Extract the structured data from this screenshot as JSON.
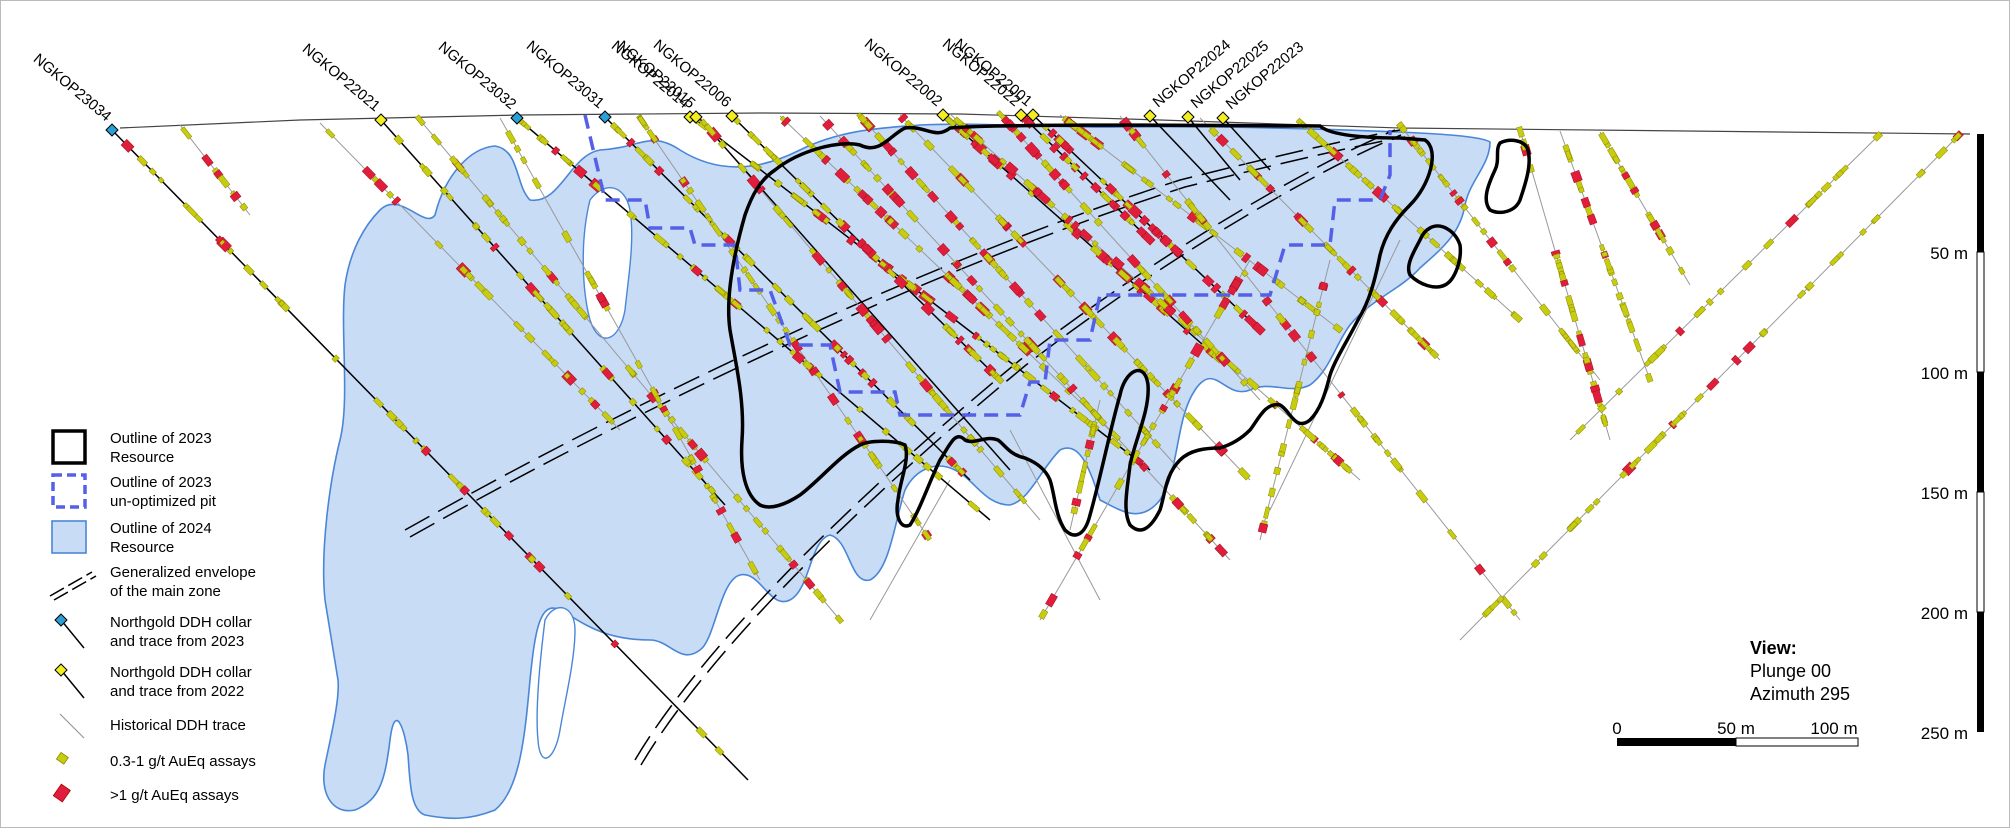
{
  "holes_2023": [
    "NGKOP23034",
    "NGKOP23032",
    "NGKOP23031"
  ],
  "holes_2022": [
    "NGKOP22021",
    "NGKOP22014",
    "NGKOP22015",
    "NGKOP22006",
    "NGKOP22002",
    "NGKOP22022",
    "NGKOP22001",
    "NGKOP22024",
    "NGKOP22025",
    "NGKOP22023"
  ],
  "legend": {
    "resource_2023": [
      "Outline of 2023",
      "Resource"
    ],
    "pit_2023": [
      "Outline of 2023",
      "un-optimized pit"
    ],
    "resource_2024": [
      "Outline of 2024",
      "Resource"
    ],
    "envelope": [
      "Generalized envelope",
      "of the main zone"
    ],
    "ddh_2023": [
      "Northgold DDH collar",
      "and trace from 2023"
    ],
    "ddh_2022": [
      "Northgold DDH collar",
      "and trace from 2022"
    ],
    "historical": "Historical DDH trace",
    "assay_low": "0.3-1 g/t AuEq assays",
    "assay_high": ">1 g/t AuEq assays"
  },
  "depth_scale": {
    "unit": "m",
    "ticks": [
      "50 m",
      "100 m",
      "150 m",
      "200 m",
      "250 m"
    ]
  },
  "view": {
    "title": "View:",
    "plunge": "Plunge 00",
    "azimuth": "Azimuth 295"
  },
  "scale_bar": {
    "labels": [
      "0",
      "50 m",
      "100 m"
    ]
  },
  "colors": {
    "resource_2023": "#000000",
    "pit_2023": "#5560e8",
    "resource_2024_fill": "#c9dcf5",
    "resource_2024_stroke": "#4a86d8",
    "collar_2023": "#2aa0d8",
    "collar_2022": "#f2ee22",
    "assay_low": "#c8cc10",
    "assay_high": "#e01e3c",
    "historical": "#999999"
  }
}
